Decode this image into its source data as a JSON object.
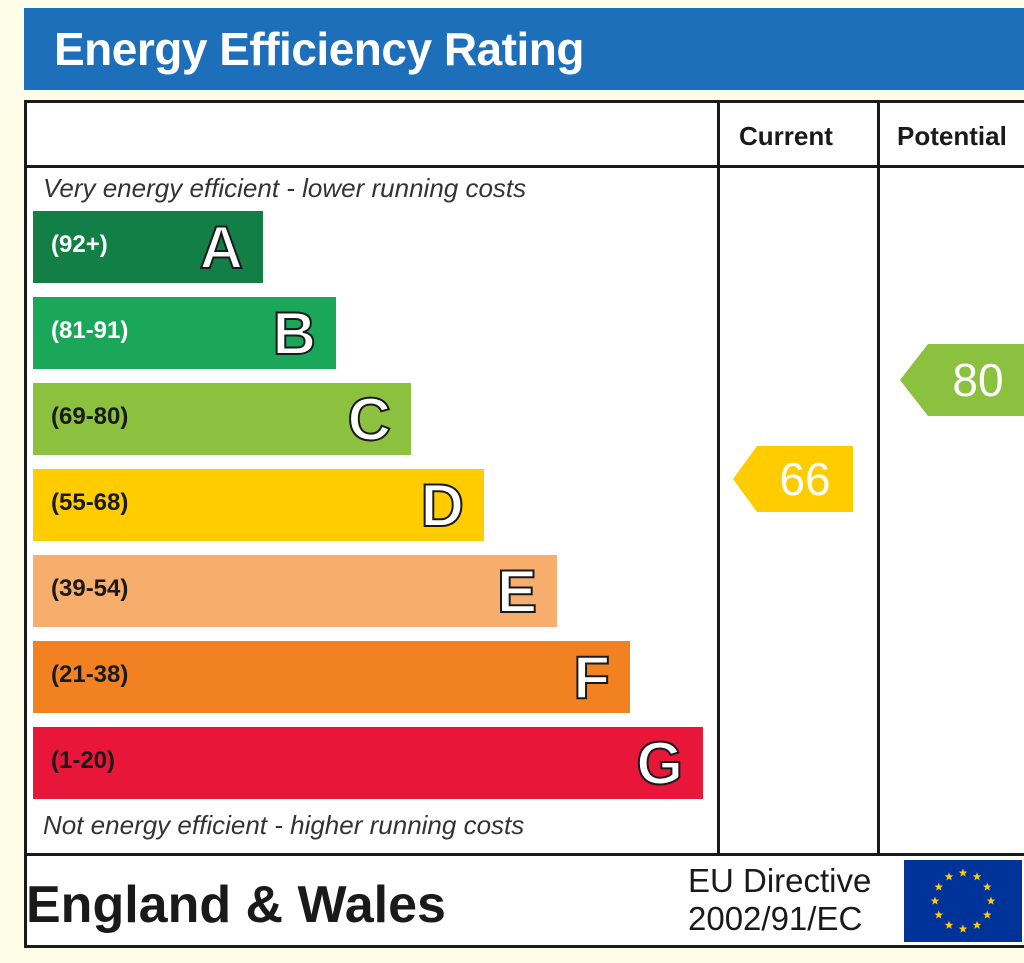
{
  "title": "Energy Efficiency Rating",
  "columns": {
    "current": "Current",
    "potential": "Potential"
  },
  "top_caption": "Very energy efficient - lower running costs",
  "bottom_caption": "Not energy efficient - higher running costs",
  "bands": [
    {
      "range": "(92+)",
      "letter": "A",
      "color": "#128046",
      "text_color": "#ffffff"
    },
    {
      "range": "(81-91)",
      "letter": "B",
      "color": "#1ba75a",
      "text_color": "#ffffff"
    },
    {
      "range": "(69-80)",
      "letter": "C",
      "color": "#8cc13f",
      "text_color": "#1a1a1a"
    },
    {
      "range": "(55-68)",
      "letter": "D",
      "color": "#ffcc00",
      "text_color": "#1a1a1a"
    },
    {
      "range": "(39-54)",
      "letter": "E",
      "color": "#f7ad6b",
      "text_color": "#1a1a1a"
    },
    {
      "range": "(21-38)",
      "letter": "F",
      "color": "#f28121",
      "text_color": "#1a1a1a"
    },
    {
      "range": "(1-20)",
      "letter": "G",
      "color": "#e8173a",
      "text_color": "#1a1a1a"
    }
  ],
  "ratings": {
    "current": {
      "value": "66",
      "color": "#ffcc00"
    },
    "potential": {
      "value": "80",
      "color": "#8cc13f"
    }
  },
  "footer": {
    "region": "England & Wales",
    "directive_line1": "EU Directive",
    "directive_line2": "2002/91/EC",
    "flag_icon": "eu-flag-icon"
  }
}
